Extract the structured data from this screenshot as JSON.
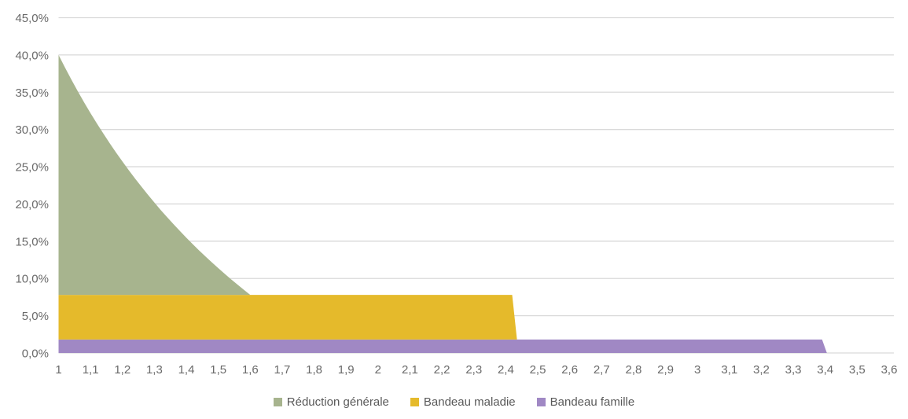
{
  "chart_data": {
    "type": "area",
    "stacked": true,
    "title": "",
    "grid": "horizontal",
    "grid_color": "#d9d9d9",
    "background_color": "#ffffff",
    "axis_text_color": "#6a6a6a",
    "legend_text_color": "#595959",
    "legend_position": "bottom",
    "x_axis": {
      "min": 1,
      "max": 3.6,
      "step": 0.1,
      "ticks": [
        {
          "value": 1.0,
          "label": "1"
        },
        {
          "value": 1.1,
          "label": "1,1"
        },
        {
          "value": 1.2,
          "label": "1,2"
        },
        {
          "value": 1.3,
          "label": "1,3"
        },
        {
          "value": 1.4,
          "label": "1,4"
        },
        {
          "value": 1.5,
          "label": "1,5"
        },
        {
          "value": 1.6,
          "label": "1,6"
        },
        {
          "value": 1.7,
          "label": "1,7"
        },
        {
          "value": 1.8,
          "label": "1,8"
        },
        {
          "value": 1.9,
          "label": "1,9"
        },
        {
          "value": 2.0,
          "label": "2"
        },
        {
          "value": 2.1,
          "label": "2,1"
        },
        {
          "value": 2.2,
          "label": "2,2"
        },
        {
          "value": 2.3,
          "label": "2,3"
        },
        {
          "value": 2.4,
          "label": "2,4"
        },
        {
          "value": 2.5,
          "label": "2,5"
        },
        {
          "value": 2.6,
          "label": "2,6"
        },
        {
          "value": 2.7,
          "label": "2,7"
        },
        {
          "value": 2.8,
          "label": "2,8"
        },
        {
          "value": 2.9,
          "label": "2,9"
        },
        {
          "value": 3.0,
          "label": "3"
        },
        {
          "value": 3.1,
          "label": "3,1"
        },
        {
          "value": 3.2,
          "label": "3,2"
        },
        {
          "value": 3.3,
          "label": "3,3"
        },
        {
          "value": 3.4,
          "label": "3,4"
        },
        {
          "value": 3.5,
          "label": "3,5"
        },
        {
          "value": 3.6,
          "label": "3,6"
        }
      ]
    },
    "y_axis": {
      "min": 0,
      "max": 45,
      "step": 5,
      "ticks": [
        {
          "value": 0,
          "label": "0,0%"
        },
        {
          "value": 5,
          "label": "5,0%"
        },
        {
          "value": 10,
          "label": "10,0%"
        },
        {
          "value": 15,
          "label": "15,0%"
        },
        {
          "value": 20,
          "label": "20,0%"
        },
        {
          "value": 25,
          "label": "25,0%"
        },
        {
          "value": 30,
          "label": "30,0%"
        },
        {
          "value": 35,
          "label": "35,0%"
        },
        {
          "value": 40,
          "label": "40,0%"
        },
        {
          "value": 45,
          "label": "45,0%"
        }
      ]
    },
    "series": [
      {
        "name": "Réduction générale",
        "color": "#a7b48e",
        "flat_value": null,
        "own_value_at_start": 32.2,
        "extent": [
          1.0,
          1.6
        ],
        "base": 7.8,
        "top_points": [
          [
            1.0,
            40.0
          ],
          [
            1.02,
            38.32
          ],
          [
            1.04,
            36.7
          ],
          [
            1.06,
            35.14
          ],
          [
            1.08,
            33.64
          ],
          [
            1.1,
            32.19
          ],
          [
            1.12,
            30.8
          ],
          [
            1.14,
            29.46
          ],
          [
            1.16,
            28.16
          ],
          [
            1.18,
            26.9
          ],
          [
            1.2,
            25.69
          ],
          [
            1.22,
            24.52
          ],
          [
            1.24,
            23.38
          ],
          [
            1.26,
            22.28
          ],
          [
            1.28,
            21.22
          ],
          [
            1.3,
            20.19
          ],
          [
            1.32,
            19.18
          ],
          [
            1.34,
            18.21
          ],
          [
            1.36,
            17.27
          ],
          [
            1.38,
            16.36
          ],
          [
            1.4,
            15.47
          ],
          [
            1.42,
            14.6
          ],
          [
            1.44,
            13.76
          ],
          [
            1.46,
            12.95
          ],
          [
            1.48,
            12.15
          ],
          [
            1.5,
            11.38
          ],
          [
            1.52,
            10.62
          ],
          [
            1.54,
            9.89
          ],
          [
            1.56,
            9.18
          ],
          [
            1.58,
            8.48
          ],
          [
            1.6,
            7.8
          ]
        ]
      },
      {
        "name": "Bandeau maladie",
        "color": "#e5ba2b",
        "flat_value": 6.0,
        "extent": [
          1.0,
          2.42
        ],
        "base": 1.8,
        "top_points": [
          [
            1.0,
            7.8
          ],
          [
            2.42,
            7.8
          ],
          [
            2.435,
            1.8
          ]
        ]
      },
      {
        "name": "Bandeau famille",
        "color": "#a088c4",
        "flat_value": 1.8,
        "extent": [
          1.0,
          3.39
        ],
        "base": 0,
        "top_points": [
          [
            1.0,
            1.8
          ],
          [
            3.39,
            1.8
          ],
          [
            3.405,
            0.0
          ]
        ]
      }
    ]
  }
}
